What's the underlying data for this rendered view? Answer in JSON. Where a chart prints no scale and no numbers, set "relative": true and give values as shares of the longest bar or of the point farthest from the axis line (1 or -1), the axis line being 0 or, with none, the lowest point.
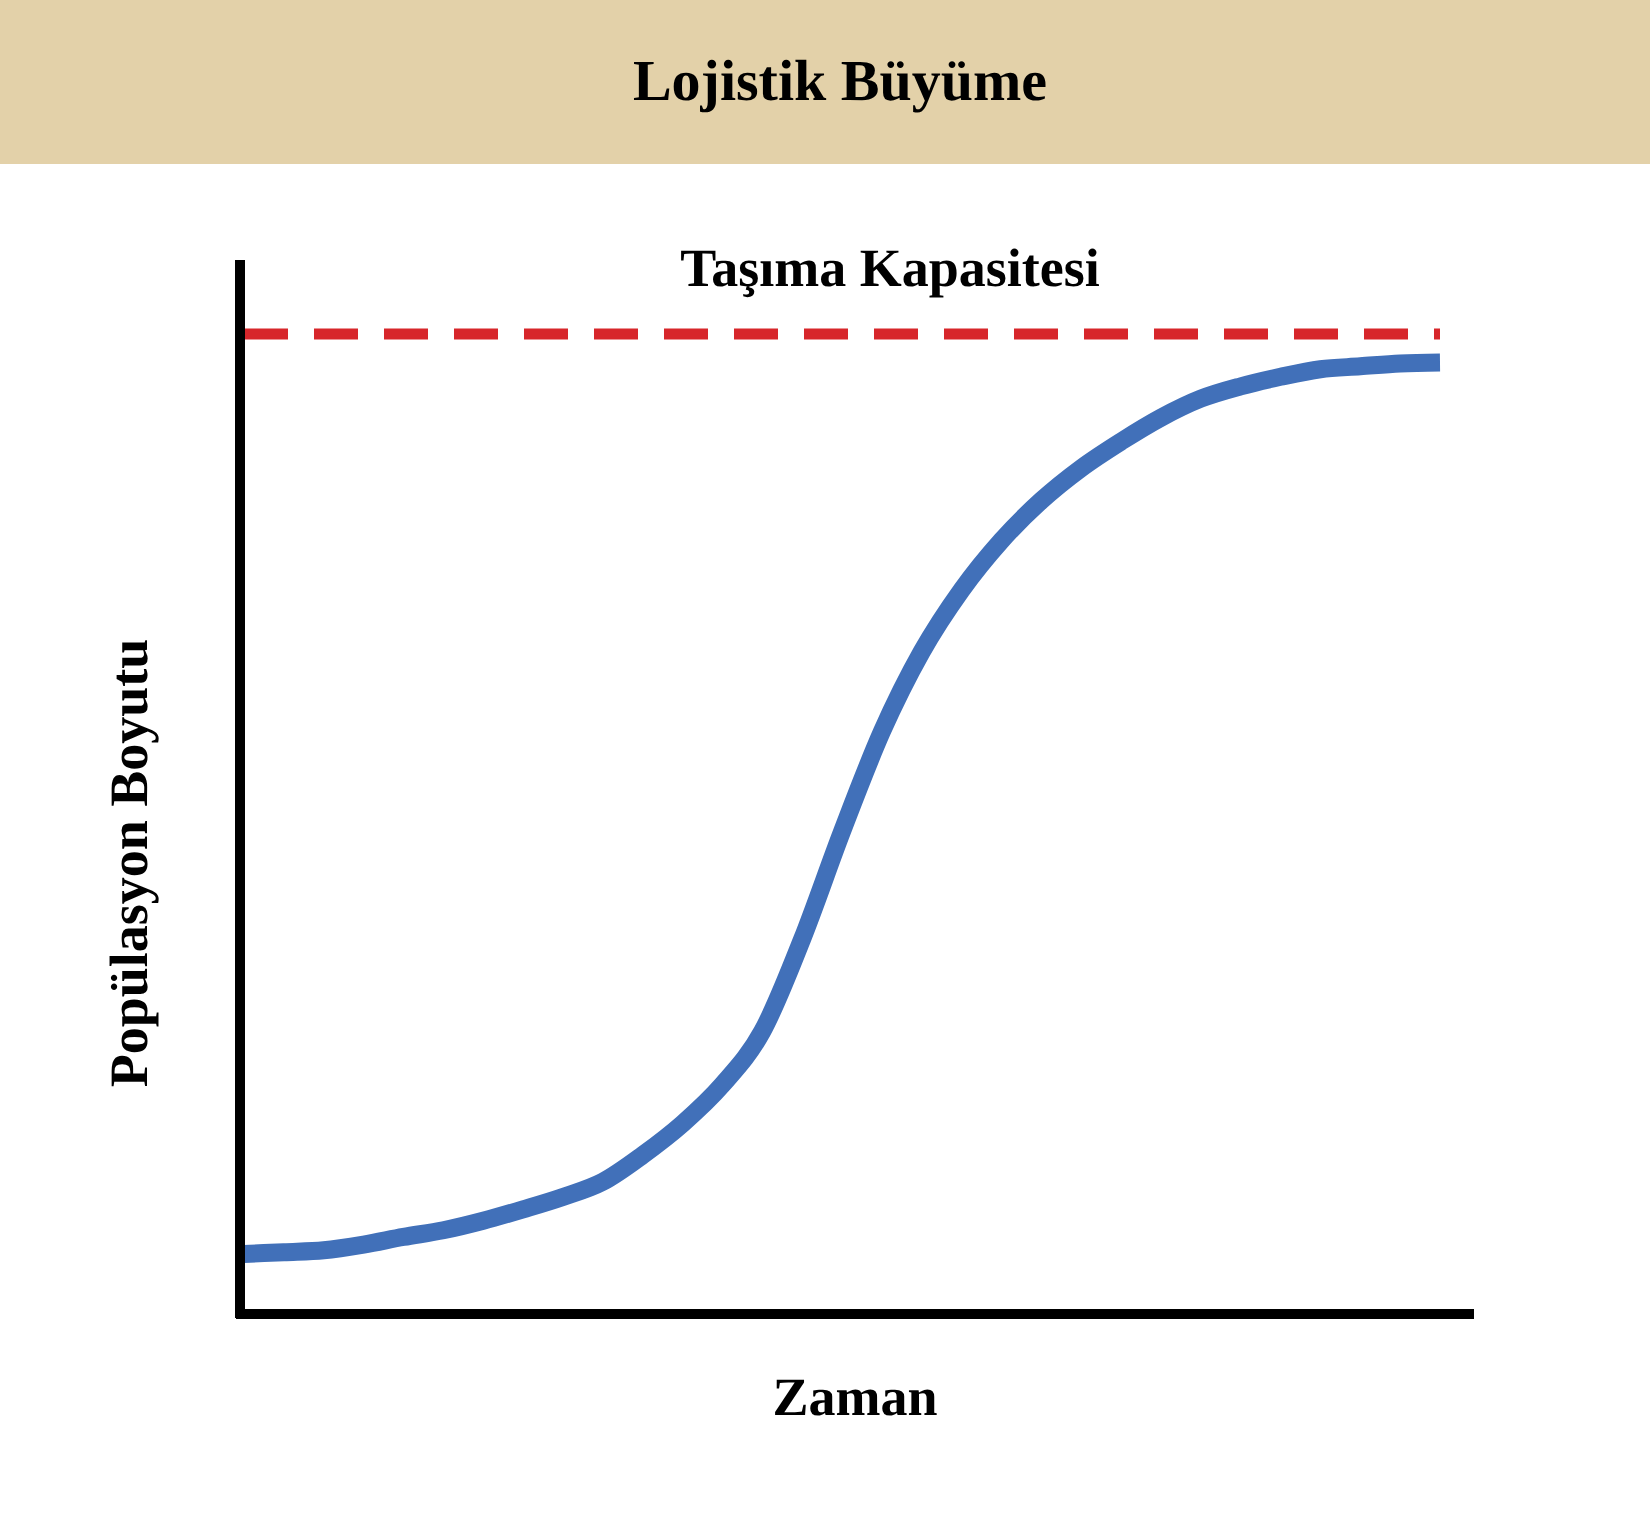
{
  "chart_data": {
    "type": "line",
    "title": "Lojistik Büyüme",
    "xlabel": "Zaman",
    "ylabel": "Popülasyon Boyutu",
    "relative": true,
    "categories": [
      null,
      null,
      null,
      null,
      null,
      null,
      null,
      null,
      null,
      null,
      null,
      null,
      null,
      null,
      null,
      null,
      null,
      null,
      null,
      null,
      null,
      null,
      null,
      null,
      null,
      null,
      null,
      null,
      null,
      null,
      null
    ],
    "series": [
      {
        "color": "#4170b9",
        "values": [
          0.063,
          0.065,
          0.067,
          0.073,
          0.081,
          0.088,
          0.098,
          0.11,
          0.123,
          0.139,
          0.167,
          0.2,
          0.241,
          0.297,
          0.394,
          0.507,
          0.612,
          0.696,
          0.761,
          0.813,
          0.855,
          0.889,
          0.917,
          0.942,
          0.962,
          0.975,
          0.985,
          0.993,
          0.996,
          0.999,
          1.0
        ]
      }
    ],
    "ref_lines": [
      {
        "axis": "y",
        "value": 1.03,
        "label": "Taşıma Kapasitesi",
        "color": "#d7262b",
        "line_style": "dashed"
      }
    ]
  }
}
